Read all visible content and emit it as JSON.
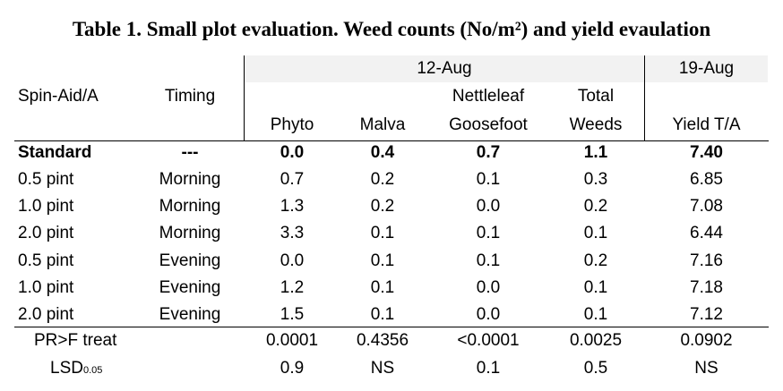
{
  "title": "Table 1. Small plot evaluation. Weed counts (No/m²) and yield evaulation",
  "header": {
    "date1": "12-Aug",
    "date2": "19-Aug",
    "col_spin": "Spin-Aid/A",
    "col_timing": "Timing",
    "col_phyto": "Phyto",
    "col_malva": "Malva",
    "col_nettle_1": "Nettleleaf",
    "col_nettle_2": "Goosefoot",
    "col_total_1": "Total",
    "col_total_2": "Weeds",
    "col_yield": "Yield T/A"
  },
  "rows": [
    {
      "spin": "Standard",
      "timing": "---",
      "phyto": "0.0",
      "malva": "0.4",
      "nettle": "0.7",
      "total": "1.1",
      "yield": "7.40"
    },
    {
      "spin": "0.5 pint",
      "timing": "Morning",
      "phyto": "0.7",
      "malva": "0.2",
      "nettle": "0.1",
      "total": "0.3",
      "yield": "6.85"
    },
    {
      "spin": "1.0 pint",
      "timing": "Morning",
      "phyto": "1.3",
      "malva": "0.2",
      "nettle": "0.0",
      "total": "0.2",
      "yield": "7.08"
    },
    {
      "spin": "2.0 pint",
      "timing": "Morning",
      "phyto": "3.3",
      "malva": "0.1",
      "nettle": "0.1",
      "total": "0.1",
      "yield": "6.44"
    },
    {
      "spin": "0.5 pint",
      "timing": "Evening",
      "phyto": "0.0",
      "malva": "0.1",
      "nettle": "0.1",
      "total": "0.2",
      "yield": "7.16"
    },
    {
      "spin": "1.0 pint",
      "timing": "Evening",
      "phyto": "1.2",
      "malva": "0.1",
      "nettle": "0.0",
      "total": "0.1",
      "yield": "7.18"
    },
    {
      "spin": "2.0 pint",
      "timing": "Evening",
      "phyto": "1.5",
      "malva": "0.1",
      "nettle": "0.0",
      "total": "0.1",
      "yield": "7.12"
    }
  ],
  "stats": {
    "prf_label": "PR>F treat",
    "prf": {
      "phyto": "0.0001",
      "malva": "0.4356",
      "nettle": "<0.0001",
      "total": "0.0025",
      "yield": "0.0902"
    },
    "lsd_label": "LSD",
    "lsd_sub": "0.05",
    "lsd": {
      "phyto": "0.9",
      "malva": "NS",
      "nettle": "0.1",
      "total": "0.5",
      "yield": "NS"
    }
  }
}
